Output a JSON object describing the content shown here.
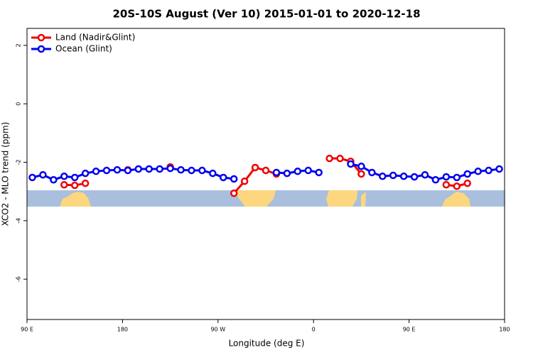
{
  "chart_data": {
    "type": "line",
    "title": "20S-10S August (Ver 10)   2015-01-01 to 2020-12-18",
    "x_label": "Longitude (deg E)",
    "y_label": "XCO2 - MLO trend (ppm)",
    "xlim": [
      90,
      540
    ],
    "xticks": [
      {
        "value": 90,
        "label": "90 E"
      },
      180,
      {
        "value": 270,
        "label": "90 W"
      },
      {
        "value": 360,
        "label": "0"
      },
      {
        "value": 450,
        "label": "90 E"
      },
      {
        "value": 540,
        "label": "180"
      }
    ],
    "ylim": [
      -7.38,
      2.58
    ],
    "yticks": [
      2,
      0,
      -2,
      -4,
      -6
    ],
    "legend": "top-left",
    "series": [
      {
        "name": "Land (Nadir&Glint)",
        "color": "#ee0000",
        "x": [
          125,
          135,
          145,
          null,
          185,
          null,
          225,
          null,
          285,
          295,
          305,
          315,
          325,
          null,
          375,
          385,
          395,
          405,
          null,
          485,
          495,
          505
        ],
        "values": [
          -2.77,
          -2.79,
          -2.72,
          null,
          -2.26,
          null,
          -2.16,
          null,
          -3.06,
          -2.65,
          -2.18,
          -2.28,
          -2.4,
          null,
          -1.87,
          -1.87,
          -1.97,
          -2.4,
          null,
          -2.77,
          -2.82,
          -2.72
        ]
      },
      {
        "name": "Ocean (Glint)",
        "color": "#0000ee",
        "x": [
          95,
          105,
          115,
          125,
          135,
          145,
          155,
          165,
          175,
          185,
          195,
          205,
          215,
          225,
          235,
          245,
          255,
          265,
          275,
          285,
          null,
          325,
          335,
          345,
          355,
          365,
          null,
          395,
          405,
          415,
          425,
          435,
          445,
          455,
          465,
          475,
          485,
          495,
          505,
          515,
          525,
          535
        ],
        "values": [
          -2.52,
          -2.43,
          -2.6,
          -2.48,
          -2.52,
          -2.38,
          -2.31,
          -2.28,
          -2.26,
          -2.28,
          -2.23,
          -2.23,
          -2.23,
          -2.21,
          -2.26,
          -2.28,
          -2.28,
          -2.38,
          -2.52,
          -2.57,
          null,
          -2.35,
          -2.38,
          -2.31,
          -2.28,
          -2.35,
          null,
          -2.06,
          -2.14,
          -2.35,
          -2.48,
          -2.45,
          -2.48,
          -2.5,
          -2.43,
          -2.6,
          -2.5,
          -2.52,
          -2.4,
          -2.31,
          -2.28,
          -2.23
        ]
      }
    ]
  }
}
